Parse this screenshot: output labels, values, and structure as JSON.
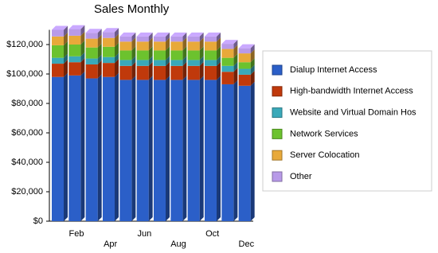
{
  "chart_data": {
    "type": "bar",
    "stacked": true,
    "title": "Sales Monthly",
    "categories": [
      null,
      "Feb",
      null,
      "Apr",
      null,
      "Jun",
      null,
      "Aug",
      null,
      "Oct",
      null,
      "Dec"
    ],
    "series": [
      {
        "name": "Dialup Internet Access",
        "color": "#2b5fc8",
        "values": [
          98000,
          99000,
          97000,
          98000,
          96000,
          96000,
          96000,
          96000,
          96000,
          96000,
          93000,
          92000
        ]
      },
      {
        "name": "High-bandwidth Internet Access",
        "color": "#c0390b",
        "values": [
          9000,
          9000,
          9500,
          9500,
          9500,
          9500,
          9500,
          9500,
          9500,
          9500,
          8500,
          7500
        ]
      },
      {
        "name": "Website and Virtual Domain Hos",
        "color": "#3aa9b9",
        "values": [
          4000,
          4000,
          4000,
          4000,
          4000,
          4000,
          4000,
          4000,
          4000,
          4000,
          4000,
          4000
        ]
      },
      {
        "name": "Network Services",
        "color": "#6cc22e",
        "values": [
          8500,
          8000,
          7500,
          7000,
          6500,
          6500,
          6500,
          6500,
          6500,
          6500,
          5500,
          4500
        ]
      },
      {
        "name": "Server Colocation",
        "color": "#e8a93a",
        "values": [
          6000,
          6000,
          6000,
          6000,
          6000,
          6000,
          6000,
          6000,
          6000,
          6000,
          6000,
          6000
        ]
      },
      {
        "name": "Other",
        "color": "#b89ae8",
        "values": [
          4500,
          4500,
          4000,
          4000,
          3500,
          3500,
          3500,
          3500,
          3500,
          3500,
          3500,
          3500
        ]
      }
    ],
    "ylim": [
      0,
      130000
    ],
    "yticks": [
      {
        "value": 0,
        "label": "$0"
      },
      {
        "value": 20000,
        "label": "$20,000"
      },
      {
        "value": 40000,
        "label": "$40,000"
      },
      {
        "value": 60000,
        "label": "$60,000"
      },
      {
        "value": 80000,
        "label": "$80,000"
      },
      {
        "value": 100000,
        "label": "$100,000"
      },
      {
        "value": 120000,
        "label": "$120,000"
      }
    ],
    "grid": false,
    "legend": "right"
  }
}
